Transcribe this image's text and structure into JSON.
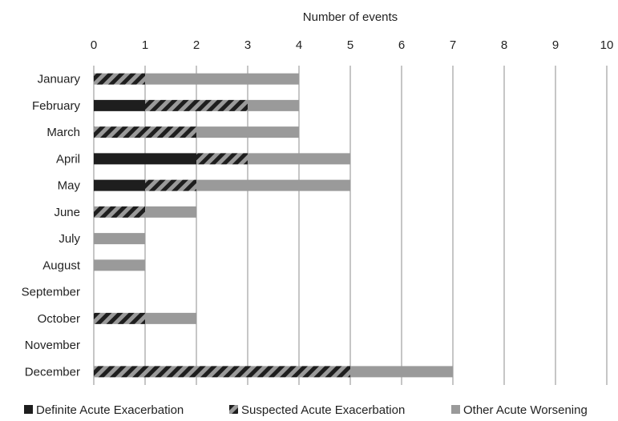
{
  "chart_data": {
    "type": "bar",
    "orientation": "horizontal",
    "stacked": true,
    "xlabel": "Number of events",
    "xlabel_position": "top",
    "xlim": [
      0,
      10
    ],
    "xticks": [
      "0",
      "1",
      "2",
      "3",
      "4",
      "5",
      "6",
      "7",
      "8",
      "9",
      "10"
    ],
    "grid": true,
    "legend_position": "bottom",
    "categories": [
      "January",
      "February",
      "March",
      "April",
      "May",
      "June",
      "July",
      "August",
      "September",
      "October",
      "November",
      "December"
    ],
    "series": [
      {
        "name": "Definite Acute Exacerbation",
        "color": "#1e1e1e",
        "pattern": "solid",
        "values": [
          0,
          1,
          0,
          2,
          1,
          0,
          0,
          0,
          0,
          0,
          0,
          0
        ]
      },
      {
        "name": "Suspected Acute Exacerbation",
        "color": "#1e1e1e",
        "pattern": "hatched",
        "values": [
          1,
          2,
          2,
          1,
          1,
          1,
          0,
          0,
          0,
          1,
          0,
          5
        ]
      },
      {
        "name": "Other Acute Worsening",
        "color": "#9a9a9a",
        "pattern": "solid",
        "values": [
          3,
          1,
          2,
          2,
          3,
          1,
          1,
          1,
          0,
          1,
          0,
          2
        ]
      }
    ]
  }
}
